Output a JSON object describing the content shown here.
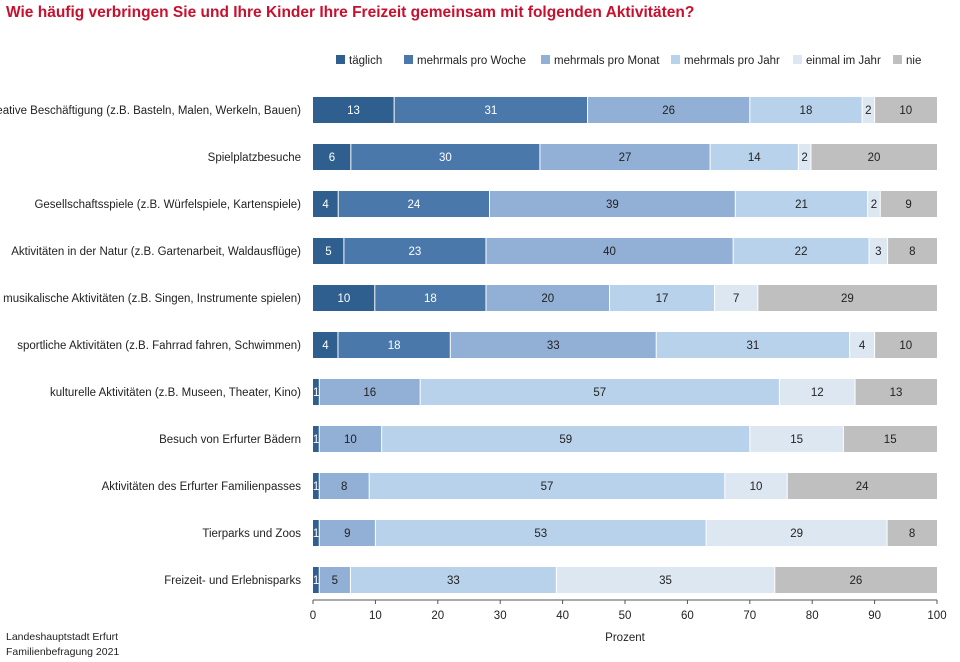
{
  "title": "Wie häufig verbringen Sie und Ihre Kinder Ihre Freizeit gemeinsam mit folgenden Aktivitäten?",
  "source": {
    "line1": "Landeshauptstadt Erfurt",
    "line2": "Familienbefragung 2021"
  },
  "chart_data": {
    "type": "bar",
    "orientation": "horizontal",
    "stacked": true,
    "title": "Wie häufig verbringen Sie und Ihre Kinder Ihre Freizeit gemeinsam mit folgenden Aktivitäten?",
    "xlabel": "Prozent",
    "ylabel": "",
    "xlim": [
      0,
      100
    ],
    "xticks": [
      0,
      10,
      20,
      30,
      40,
      50,
      60,
      70,
      80,
      90,
      100
    ],
    "grid": false,
    "legend": "top",
    "categories": [
      "kreative Beschäftigung (z.B. Basteln, Malen, Werkeln, Bauen)",
      "Spielplatzbesuche",
      "Gesellschaftsspiele (z.B. Würfelspiele, Kartenspiele)",
      "Aktivitäten in der Natur (z.B. Gartenarbeit, Waldausflüge)",
      "musikalische Aktivitäten (z.B. Singen, Instrumente spielen)",
      "sportliche Aktivitäten (z.B. Fahrrad fahren, Schwimmen)",
      "kulturelle Aktivitäten (z.B. Museen, Theater, Kino)",
      "Besuch von Erfurter Bädern",
      "Aktivitäten des Erfurter Familienpasses",
      "Tierparks und Zoos",
      "Freizeit- und Erlebnisparks"
    ],
    "series": [
      {
        "name": "täglich",
        "color": "#2e5f8f",
        "values": [
          13,
          6,
          4,
          5,
          10,
          4,
          1,
          1,
          1,
          1,
          1
        ]
      },
      {
        "name": "mehrmals pro Woche",
        "color": "#4a78ab",
        "values": [
          31,
          30,
          24,
          23,
          18,
          18,
          0,
          0,
          0,
          0,
          0
        ]
      },
      {
        "name": "mehrmals pro Monat",
        "color": "#92afd6",
        "values": [
          26,
          27,
          39,
          40,
          20,
          33,
          16,
          10,
          8,
          9,
          5
        ]
      },
      {
        "name": "mehrmals pro Jahr",
        "color": "#b8d2ec",
        "values": [
          18,
          14,
          21,
          22,
          17,
          31,
          57,
          59,
          57,
          53,
          33
        ]
      },
      {
        "name": "einmal im Jahr",
        "color": "#dde7f2",
        "values": [
          2,
          2,
          2,
          3,
          7,
          4,
          12,
          15,
          10,
          29,
          35
        ]
      },
      {
        "name": "nie",
        "color": "#bfbfbf",
        "values": [
          10,
          20,
          9,
          8,
          29,
          10,
          13,
          15,
          24,
          8,
          26
        ]
      }
    ]
  }
}
